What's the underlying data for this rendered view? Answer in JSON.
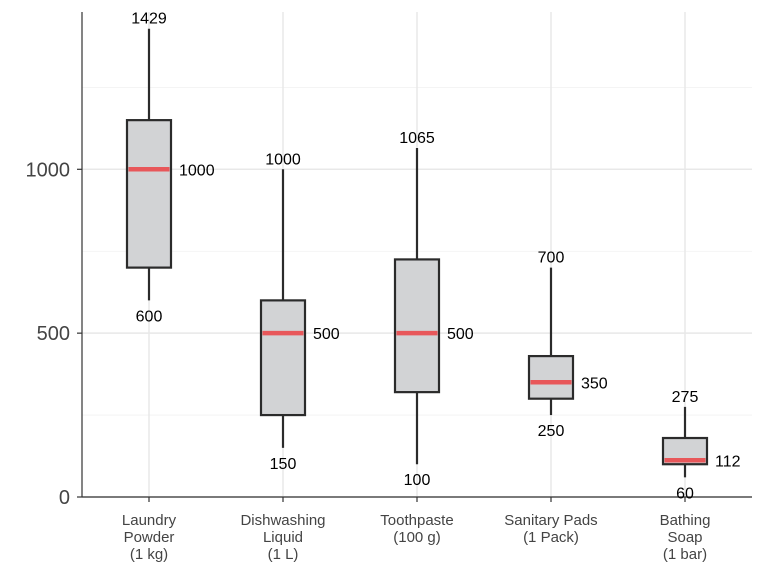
{
  "chart_data": {
    "type": "boxplot",
    "title": "",
    "xlabel": "",
    "ylabel": "",
    "ylim": [
      0,
      1480
    ],
    "yticks": [
      0,
      500,
      1000
    ],
    "grid": true,
    "colors": {
      "box_fill": "#d2d3d5",
      "box_stroke": "#2b2b2b",
      "median": "#e8575a",
      "grid": "#e8e8e8"
    },
    "categories": [
      {
        "label_lines": [
          "Laundry",
          "Powder",
          "(1 kg)"
        ]
      },
      {
        "label_lines": [
          "Dishwashing",
          "Liquid",
          "(1 L)"
        ]
      },
      {
        "label_lines": [
          "Toothpaste",
          "(100 g)"
        ]
      },
      {
        "label_lines": [
          "Sanitary Pads",
          "(1 Pack)"
        ]
      },
      {
        "label_lines": [
          "Bathing",
          "Soap",
          "(1 bar)"
        ]
      }
    ],
    "boxes": [
      {
        "min": 600,
        "q1": 700,
        "median": 1000,
        "q3": 1150,
        "max": 1429,
        "labels": {
          "max": "1429",
          "median": "1000",
          "min": "600"
        }
      },
      {
        "min": 150,
        "q1": 250,
        "median": 500,
        "q3": 600,
        "max": 1000,
        "labels": {
          "max": "1000",
          "median": "500",
          "min": "150"
        }
      },
      {
        "min": 100,
        "q1": 320,
        "median": 500,
        "q3": 725,
        "max": 1065,
        "labels": {
          "max": "1065",
          "median": "500",
          "min": "100"
        }
      },
      {
        "min": 250,
        "q1": 300,
        "median": 350,
        "q3": 430,
        "max": 700,
        "labels": {
          "max": "700",
          "median": "350",
          "min": "250"
        }
      },
      {
        "min": 60,
        "q1": 100,
        "median": 112,
        "q3": 180,
        "max": 275,
        "labels": {
          "max": "275",
          "median": "112",
          "min": "60"
        }
      }
    ]
  }
}
